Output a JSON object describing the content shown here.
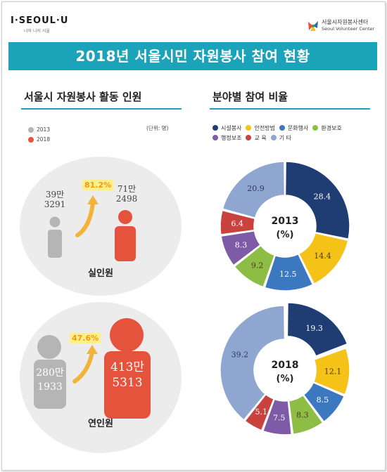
{
  "header": {
    "logo": "I·SEOUL·U",
    "logo_sub": "너와 나의 서울",
    "org_name": "서울시자원봉사센터",
    "org_name_en": "Seoul Volunteer Center",
    "title": "2018년 서울시민 자원봉사 참여 현황"
  },
  "left": {
    "section_title": "서울시 자원봉사 활동 인원",
    "unit": "(단위: 명)",
    "legend": [
      {
        "label": "2013",
        "color": "#b5b5b5"
      },
      {
        "label": "2018",
        "color": "#e5533d"
      }
    ],
    "real": {
      "label": "실인원",
      "v2013": [
        "39만",
        "3291"
      ],
      "v2018": [
        "71만",
        "2498"
      ],
      "growth": "81.2%"
    },
    "cumulative": {
      "label": "연인원",
      "v2013": [
        "280만",
        "1933"
      ],
      "v2018": [
        "413만",
        "5313"
      ],
      "growth": "47.6%"
    }
  },
  "right": {
    "section_title": "분야별 참여 비율",
    "colors": {
      "2013": "#b5b5b5",
      "2018": "#e5533d"
    }
  },
  "chart_data": {
    "type": "pie",
    "categories": [
      "시설봉사",
      "안전방범",
      "문화행사",
      "환경보호",
      "행정보조",
      "교 육",
      "기 타"
    ],
    "colors": [
      "#1f3d73",
      "#f5c218",
      "#3b78c0",
      "#8dbd45",
      "#7d5ba6",
      "#c9423e",
      "#8fa6d1"
    ],
    "series": [
      {
        "name": "2013",
        "center_label": [
          "2013",
          "(%)"
        ],
        "values": [
          28.4,
          14.4,
          12.5,
          9.2,
          8.3,
          6.4,
          20.9
        ]
      },
      {
        "name": "2018",
        "center_label": [
          "2018",
          "(%)"
        ],
        "values": [
          19.3,
          12.1,
          8.5,
          8.3,
          7.5,
          5.1,
          39.2
        ]
      }
    ]
  }
}
